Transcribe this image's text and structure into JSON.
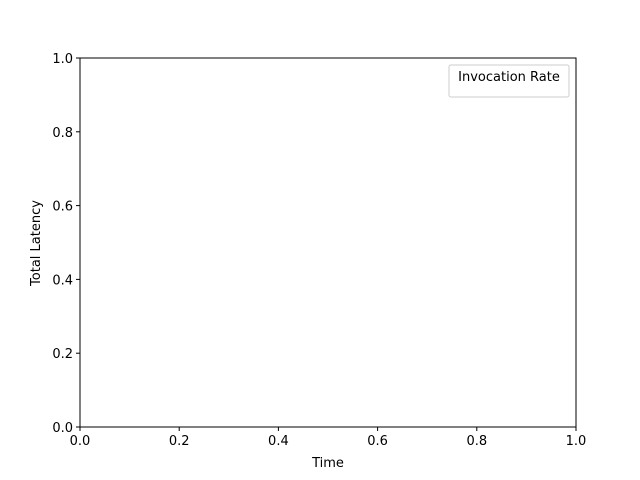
{
  "chart_data": {
    "type": "line",
    "title": "",
    "xlabel": "Time",
    "ylabel": "Total Latency",
    "xlim": [
      0.0,
      1.0
    ],
    "ylim": [
      0.0,
      1.0
    ],
    "x_ticks": [
      "0.0",
      "0.2",
      "0.4",
      "0.6",
      "0.8",
      "1.0"
    ],
    "y_ticks": [
      "0.0",
      "0.2",
      "0.4",
      "0.6",
      "0.8",
      "1.0"
    ],
    "series": [],
    "grid": false,
    "legend": {
      "title": "Invocation Rate",
      "position": "top-right",
      "entries": []
    }
  }
}
